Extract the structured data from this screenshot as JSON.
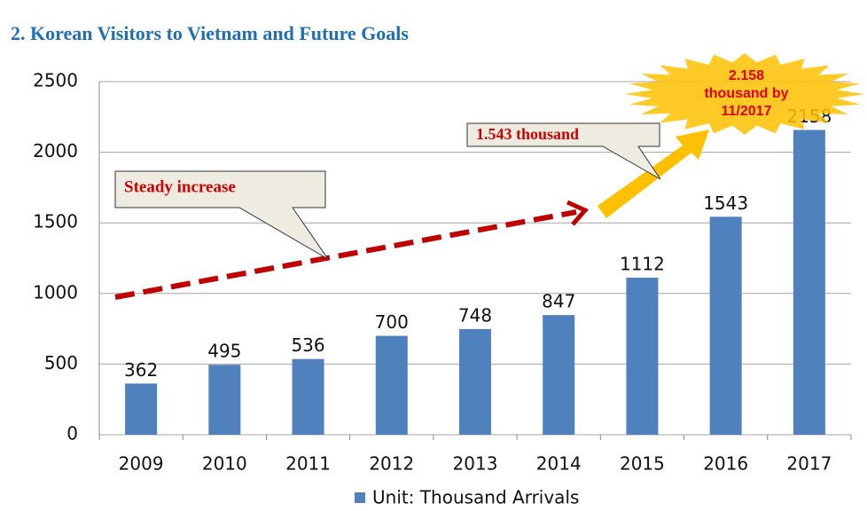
{
  "chart_data": {
    "type": "bar",
    "title": "2. Korean Visitors to Vietnam and Future Goals",
    "categories": [
      "2009",
      "2010",
      "2011",
      "2012",
      "2013",
      "2014",
      "2015",
      "2016",
      "2017"
    ],
    "series": [
      {
        "name": "Unit: Thousand Arrivals",
        "color": "#4f81bd",
        "values": [
          362,
          495,
          536,
          700,
          748,
          847,
          1112,
          1543,
          2158
        ]
      }
    ],
    "ylim": [
      0,
      2500
    ],
    "yticks": [
      0,
      500,
      1000,
      1500,
      2000,
      2500
    ],
    "grid": true,
    "annotations": [
      {
        "text": "Steady increase"
      },
      {
        "text": "1.543 thousand"
      },
      {
        "text": [
          "2.158",
          "thousand by",
          "11/2017"
        ]
      }
    ]
  }
}
